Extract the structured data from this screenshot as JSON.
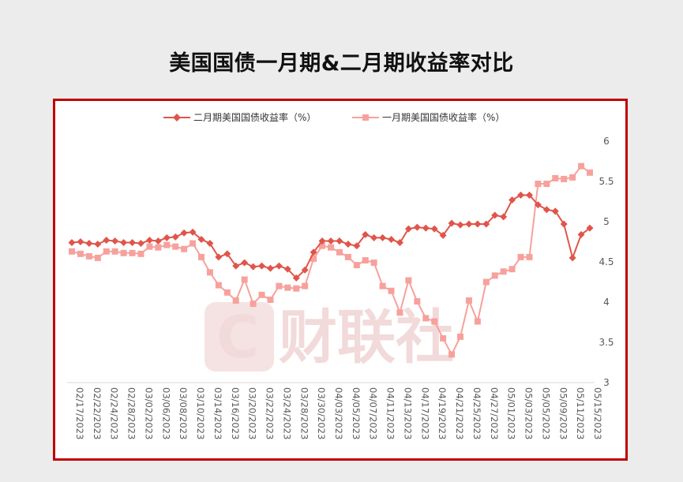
{
  "page": {
    "title": "美国国债一月期&二月期收益率对比"
  },
  "watermark": {
    "logo_letter": "C",
    "text": "财联社"
  },
  "colors": {
    "frame": "#c00000",
    "series_2m": "#e0554a",
    "series_1m": "#f7a19c"
  },
  "chart_data": {
    "type": "line",
    "title": "美国国债一月期&二月期收益率对比",
    "legend_position": "top",
    "ylim": [
      3,
      6
    ],
    "yticks": [
      "3",
      "3.5",
      "4",
      "4.5",
      "5",
      "5.5",
      "6"
    ],
    "y_axis_side": "right",
    "grid": false,
    "x_tick_labels": [
      "02/17/2023",
      "02/22/2023",
      "02/24/2023",
      "02/28/2023",
      "03/02/2023",
      "03/06/2023",
      "03/08/2023",
      "03/10/2023",
      "03/14/2023",
      "03/16/2023",
      "03/20/2023",
      "03/22/2023",
      "03/24/2023",
      "03/28/2023",
      "03/30/2023",
      "04/03/2023",
      "04/05/2023",
      "04/07/2023",
      "04/11/2023",
      "04/13/2023",
      "04/17/2023",
      "04/19/2023",
      "04/21/2023",
      "04/25/2023",
      "04/27/2023",
      "05/01/2023",
      "05/03/2023",
      "05/05/2023",
      "05/09/2023",
      "05/11/2023",
      "05/15/2023"
    ],
    "series": [
      {
        "name": "二月期美国国债收益率（%）",
        "marker": "diamond",
        "values": [
          4.74,
          4.75,
          4.73,
          4.72,
          4.77,
          4.76,
          4.74,
          4.74,
          4.73,
          4.77,
          4.76,
          4.8,
          4.81,
          4.86,
          4.87,
          4.78,
          4.73,
          4.56,
          4.6,
          4.45,
          4.49,
          4.44,
          4.45,
          4.42,
          4.45,
          4.41,
          4.3,
          4.4,
          4.62,
          4.76,
          4.76,
          4.76,
          4.72,
          4.7,
          4.84,
          4.8,
          4.8,
          4.78,
          4.74,
          4.91,
          4.93,
          4.92,
          4.91,
          4.83,
          4.98,
          4.96,
          4.97,
          4.97,
          4.97,
          5.08,
          5.06,
          5.27,
          5.33,
          5.33,
          5.21,
          5.15,
          5.13,
          4.97,
          4.55,
          4.84,
          4.92
        ]
      },
      {
        "name": "一月期美国国债收益率（%）",
        "marker": "square",
        "values": [
          4.63,
          4.6,
          4.57,
          4.55,
          4.63,
          4.63,
          4.61,
          4.61,
          4.6,
          4.69,
          4.68,
          4.71,
          4.69,
          4.66,
          4.73,
          4.56,
          4.37,
          4.21,
          4.12,
          4.02,
          4.28,
          3.98,
          4.09,
          4.03,
          4.2,
          4.18,
          4.17,
          4.2,
          4.54,
          4.7,
          4.68,
          4.62,
          4.56,
          4.46,
          4.52,
          4.49,
          4.2,
          4.14,
          3.87,
          4.27,
          4.01,
          3.8,
          3.76,
          3.55,
          3.35,
          3.57,
          4.02,
          3.76,
          4.25,
          4.33,
          4.38,
          4.41,
          4.56,
          4.56,
          5.47,
          5.47,
          5.54,
          5.53,
          5.55,
          5.69,
          5.61
        ]
      }
    ]
  }
}
